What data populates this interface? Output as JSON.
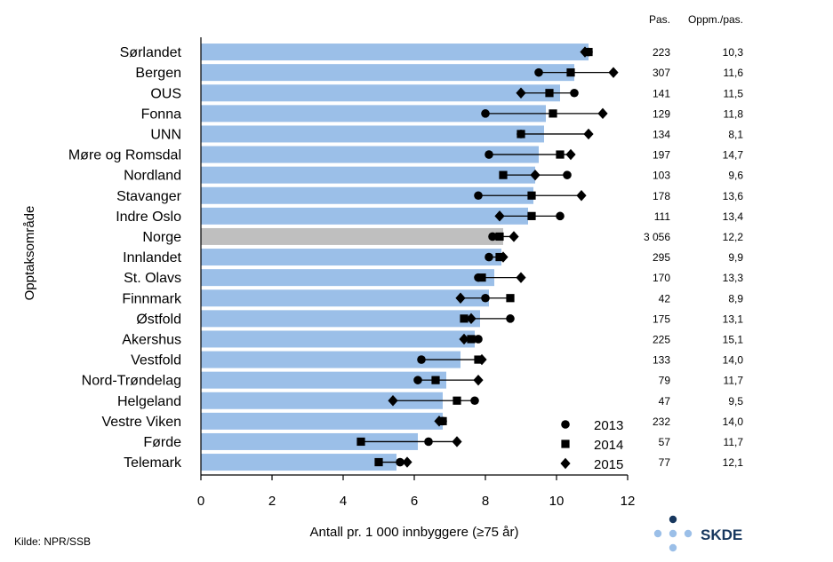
{
  "chart_data": {
    "type": "bar",
    "orientation": "horizontal",
    "ylabel": "Opptaksområde",
    "xlabel": "Antall pr. 1 000 innbyggere (≥75 år)",
    "xlim": [
      0,
      12
    ],
    "xticks": [
      0,
      2,
      4,
      6,
      8,
      10,
      12
    ],
    "xtick_labels": [
      "0",
      "2",
      "4",
      "6",
      "8",
      "10",
      "12"
    ],
    "grid": false,
    "highlight_category": "Norge",
    "colors": {
      "bar": "#9bbfe8",
      "highlight_bar": "#bfbfbf",
      "marker": "#000000"
    },
    "column_headers": {
      "patients": "Pas.",
      "ratio": "Oppm./pas."
    },
    "series": [
      {
        "name": "2013",
        "marker": "circle"
      },
      {
        "name": "2014",
        "marker": "square"
      },
      {
        "name": "2015",
        "marker": "diamond"
      }
    ],
    "rows": [
      {
        "label": "Sørlandet",
        "bar": 10.9,
        "y2013": 10.9,
        "y2014": 10.9,
        "y2015": 10.8,
        "patients": "223",
        "ratio": "10,3"
      },
      {
        "label": "Bergen",
        "bar": 10.5,
        "y2013": 9.5,
        "y2014": 10.4,
        "y2015": 11.6,
        "patients": "307",
        "ratio": "11,6"
      },
      {
        "label": "OUS",
        "bar": 10.1,
        "y2013": 10.5,
        "y2014": 9.8,
        "y2015": 9.0,
        "patients": "141",
        "ratio": "11,5"
      },
      {
        "label": "Fonna",
        "bar": 9.7,
        "y2013": 8.0,
        "y2014": 9.9,
        "y2015": 11.3,
        "patients": "129",
        "ratio": "11,8"
      },
      {
        "label": "UNN",
        "bar": 9.65,
        "y2013": 9.0,
        "y2014": 9.0,
        "y2015": 10.9,
        "patients": "134",
        "ratio": "8,1"
      },
      {
        "label": "Møre og Romsdal",
        "bar": 9.5,
        "y2013": 8.1,
        "y2014": 10.1,
        "y2015": 10.4,
        "patients": "197",
        "ratio": "14,7"
      },
      {
        "label": "Nordland",
        "bar": 9.4,
        "y2013": 10.3,
        "y2014": 8.5,
        "y2015": 9.4,
        "patients": "103",
        "ratio": "9,6"
      },
      {
        "label": "Stavanger",
        "bar": 9.35,
        "y2013": 7.8,
        "y2014": 9.3,
        "y2015": 10.7,
        "patients": "178",
        "ratio": "13,6"
      },
      {
        "label": "Indre Oslo",
        "bar": 9.2,
        "y2013": 10.1,
        "y2014": 9.3,
        "y2015": 8.4,
        "patients": "111",
        "ratio": "13,4"
      },
      {
        "label": "Norge",
        "bar": 8.5,
        "y2013": 8.2,
        "y2014": 8.4,
        "y2015": 8.8,
        "patients": "3 056",
        "ratio": "12,2"
      },
      {
        "label": "Innlandet",
        "bar": 8.45,
        "y2013": 8.1,
        "y2014": 8.4,
        "y2015": 8.5,
        "patients": "295",
        "ratio": "9,9"
      },
      {
        "label": "St. Olavs",
        "bar": 8.25,
        "y2013": 7.8,
        "y2014": 7.9,
        "y2015": 9.0,
        "patients": "170",
        "ratio": "13,3"
      },
      {
        "label": "Finnmark",
        "bar": 8.1,
        "y2013": 8.0,
        "y2014": 8.7,
        "y2015": 7.3,
        "patients": "42",
        "ratio": "8,9"
      },
      {
        "label": "Østfold",
        "bar": 7.85,
        "y2013": 8.7,
        "y2014": 7.4,
        "y2015": 7.6,
        "patients": "175",
        "ratio": "13,1"
      },
      {
        "label": "Akershus",
        "bar": 7.7,
        "y2013": 7.8,
        "y2014": 7.6,
        "y2015": 7.4,
        "patients": "225",
        "ratio": "15,1"
      },
      {
        "label": "Vestfold",
        "bar": 7.3,
        "y2013": 6.2,
        "y2014": 7.8,
        "y2015": 7.9,
        "patients": "133",
        "ratio": "14,0"
      },
      {
        "label": "Nord-Trøndelag",
        "bar": 6.9,
        "y2013": 6.1,
        "y2014": 6.6,
        "y2015": 7.8,
        "patients": "79",
        "ratio": "11,7"
      },
      {
        "label": "Helgeland",
        "bar": 6.8,
        "y2013": 7.7,
        "y2014": 7.2,
        "y2015": 5.4,
        "patients": "47",
        "ratio": "9,5"
      },
      {
        "label": "Vestre Viken",
        "bar": 6.8,
        "y2013": 6.8,
        "y2014": 6.8,
        "y2015": 6.7,
        "patients": "232",
        "ratio": "14,0"
      },
      {
        "label": "Førde",
        "bar": 6.1,
        "y2013": 6.4,
        "y2014": 4.5,
        "y2015": 7.2,
        "patients": "57",
        "ratio": "11,7"
      },
      {
        "label": "Telemark",
        "bar": 5.5,
        "y2013": 5.6,
        "y2014": 5.0,
        "y2015": 5.8,
        "patients": "77",
        "ratio": "12,1"
      }
    ]
  },
  "footer": {
    "source": "Kilde: NPR/SSB",
    "logo_text": "SKDE",
    "logo_color": "#17375e",
    "logo_dot_light": "#9bbfe8",
    "logo_dot_dark": "#17375e"
  }
}
